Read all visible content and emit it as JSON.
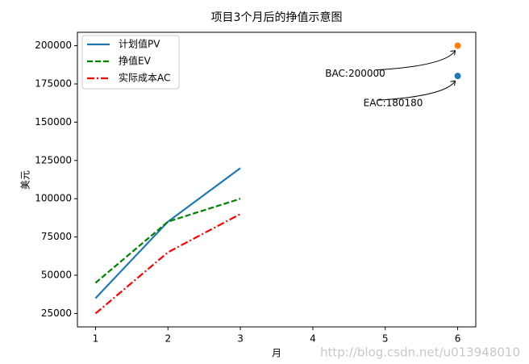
{
  "chart_data": {
    "type": "line",
    "title": "项目3个月后的挣值示意图",
    "x_label": "月",
    "y_label": "美元",
    "x": [
      1,
      2,
      3
    ],
    "series": [
      {
        "name": "计划值PV",
        "color": "#1f77b4",
        "dash": "solid",
        "values": [
          35000,
          85000,
          120000
        ]
      },
      {
        "name": "挣值EV",
        "color": "#008000",
        "dash": "dashed",
        "values": [
          45000,
          85000,
          100000
        ]
      },
      {
        "name": "实际成本AC",
        "color": "#ff0000",
        "dash": "dashdot",
        "values": [
          25000,
          65000,
          90000
        ]
      }
    ],
    "points": [
      {
        "x": 6,
        "value": 200000,
        "color": "#ff7f0e",
        "label": "BAC:200000"
      },
      {
        "x": 6,
        "value": 180180,
        "color": "#1f77b4",
        "label": "EAC:180180"
      }
    ],
    "xlim": [
      0.75,
      6.25
    ],
    "ylim": [
      16250,
      208750
    ],
    "xticks": [
      1,
      2,
      3,
      4,
      5,
      6
    ],
    "yticks": [
      25000,
      50000,
      75000,
      100000,
      125000,
      150000,
      175000,
      200000
    ],
    "legend": "upper left",
    "watermark": "http://blog.csdn.net/u013948010"
  }
}
